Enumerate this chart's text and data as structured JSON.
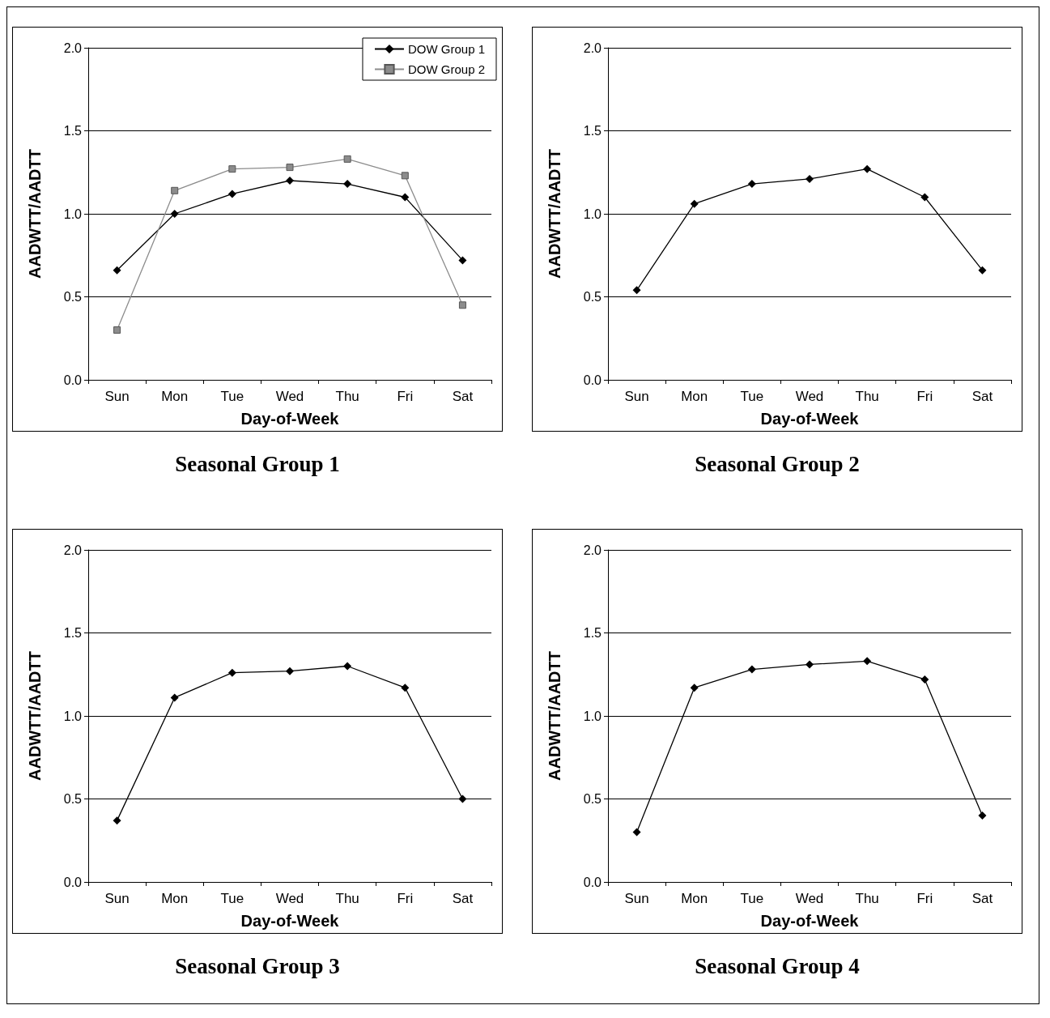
{
  "chart_data": [
    {
      "type": "line",
      "title": "Seasonal Group 1",
      "xlabel": "Day-of-Week",
      "ylabel": "AADWTT/AADTT",
      "categories": [
        "Sun",
        "Mon",
        "Tue",
        "Wed",
        "Thu",
        "Fri",
        "Sat"
      ],
      "ylim": [
        0,
        2
      ],
      "yticks": [
        {
          "value": 0,
          "label": "0.0"
        },
        {
          "value": 0.5,
          "label": "0.5"
        },
        {
          "value": 1,
          "label": "1.0"
        },
        {
          "value": 1.5,
          "label": "1.5"
        },
        {
          "value": 2,
          "label": "2.0"
        }
      ],
      "grid": "y",
      "legend": "top right",
      "marker": "diamond",
      "line_style": "solid",
      "series": [
        {
          "name": "DOW Group 1",
          "color": "#000000",
          "values": [
            0.66,
            1.0,
            1.12,
            1.2,
            1.18,
            1.1,
            0.72
          ]
        },
        {
          "name": "DOW Group 2",
          "color": "#8c8c8c",
          "marker": "square",
          "values": [
            0.3,
            1.14,
            1.27,
            1.28,
            1.33,
            1.23,
            0.45
          ]
        }
      ]
    },
    {
      "type": "line",
      "title": "Seasonal Group 2",
      "xlabel": "Day-of-Week",
      "ylabel": "AADWTT/AADTT",
      "categories": [
        "Sun",
        "Mon",
        "Tue",
        "Wed",
        "Thu",
        "Fri",
        "Sat"
      ],
      "ylim": [
        0,
        2
      ],
      "yticks": [
        {
          "value": 0,
          "label": "0.0"
        },
        {
          "value": 0.5,
          "label": "0.5"
        },
        {
          "value": 1,
          "label": "1.0"
        },
        {
          "value": 1.5,
          "label": "1.5"
        },
        {
          "value": 2,
          "label": "2.0"
        }
      ],
      "grid": "y",
      "marker": "diamond",
      "line_style": "solid",
      "series": [
        {
          "color": "#000000",
          "values": [
            0.54,
            1.06,
            1.18,
            1.21,
            1.27,
            1.1,
            0.66
          ]
        }
      ]
    },
    {
      "type": "line",
      "title": "Seasonal Group 3",
      "xlabel": "Day-of-Week",
      "ylabel": "AADWTT/AADTT",
      "categories": [
        "Sun",
        "Mon",
        "Tue",
        "Wed",
        "Thu",
        "Fri",
        "Sat"
      ],
      "ylim": [
        0,
        2
      ],
      "yticks": [
        {
          "value": 0,
          "label": "0.0"
        },
        {
          "value": 0.5,
          "label": "0.5"
        },
        {
          "value": 1,
          "label": "1.0"
        },
        {
          "value": 1.5,
          "label": "1.5"
        },
        {
          "value": 2,
          "label": "2.0"
        }
      ],
      "grid": "y",
      "marker": "diamond",
      "line_style": "solid",
      "series": [
        {
          "color": "#000000",
          "values": [
            0.37,
            1.11,
            1.26,
            1.27,
            1.3,
            1.17,
            0.5
          ]
        }
      ]
    },
    {
      "type": "line",
      "title": "Seasonal Group 4",
      "xlabel": "Day-of-Week",
      "ylabel": "AADWTT/AADTT",
      "categories": [
        "Sun",
        "Mon",
        "Tue",
        "Wed",
        "Thu",
        "Fri",
        "Sat"
      ],
      "ylim": [
        0,
        2
      ],
      "yticks": [
        {
          "value": 0,
          "label": "0.0"
        },
        {
          "value": 0.5,
          "label": "0.5"
        },
        {
          "value": 1,
          "label": "1.0"
        },
        {
          "value": 1.5,
          "label": "1.5"
        },
        {
          "value": 2,
          "label": "2.0"
        }
      ],
      "grid": "y",
      "marker": "diamond",
      "line_style": "solid",
      "series": [
        {
          "color": "#000000",
          "values": [
            0.3,
            1.17,
            1.28,
            1.31,
            1.33,
            1.22,
            0.4
          ]
        }
      ]
    }
  ]
}
